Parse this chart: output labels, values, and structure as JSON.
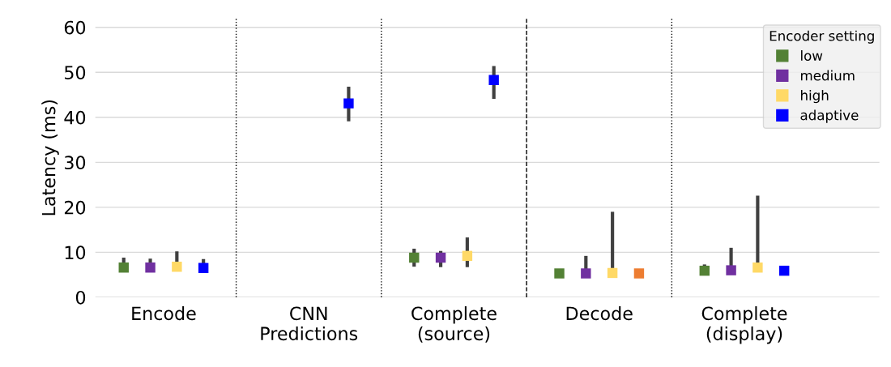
{
  "chart_data": {
    "type": "scatter",
    "ylabel": "Latency (ms)",
    "legend_title": "Encoder setting",
    "categories": [
      "Encode",
      "CNN\nPredictions",
      "Complete\n(source)",
      "Decode",
      "Complete\n(display)"
    ],
    "series": [
      {
        "name": "low",
        "color": "#538135",
        "values": [
          6.6,
          null,
          8.8,
          5.3,
          5.9
        ],
        "errors": [
          [
            6.6,
            8.8
          ],
          null,
          [
            6.8,
            10.8
          ],
          null,
          [
            5.9,
            7.3
          ]
        ]
      },
      {
        "name": "medium",
        "color": "#7030a0",
        "values": [
          6.6,
          null,
          8.8,
          5.3,
          6.0
        ],
        "errors": [
          [
            6.6,
            8.6
          ],
          null,
          [
            6.7,
            10.3
          ],
          [
            5.3,
            9.2
          ],
          [
            6.0,
            11.0
          ]
        ]
      },
      {
        "name": "high",
        "color": "#ffd966",
        "values": [
          6.8,
          null,
          9.2,
          5.4,
          6.6
        ],
        "errors": [
          [
            6.8,
            10.2
          ],
          null,
          [
            6.7,
            13.3
          ],
          [
            5.4,
            19.0
          ],
          [
            6.6,
            22.6
          ]
        ]
      },
      {
        "name": "adaptive",
        "color": "#0000ff",
        "colors": [
          "#0000ff",
          "#0000ff",
          "#0000ff",
          "#ed7d31",
          "#0000ff"
        ],
        "values": [
          6.5,
          43.1,
          48.3,
          5.3,
          5.9
        ],
        "errors": [
          [
            6.5,
            8.5
          ],
          [
            39.1,
            46.8
          ],
          [
            44.1,
            51.4
          ],
          null,
          null
        ]
      }
    ],
    "ylim": [
      0,
      62
    ],
    "yticks": [
      0,
      10,
      20,
      30,
      40,
      50,
      60
    ],
    "grid": "y",
    "legend": "top right",
    "marker": "square"
  }
}
